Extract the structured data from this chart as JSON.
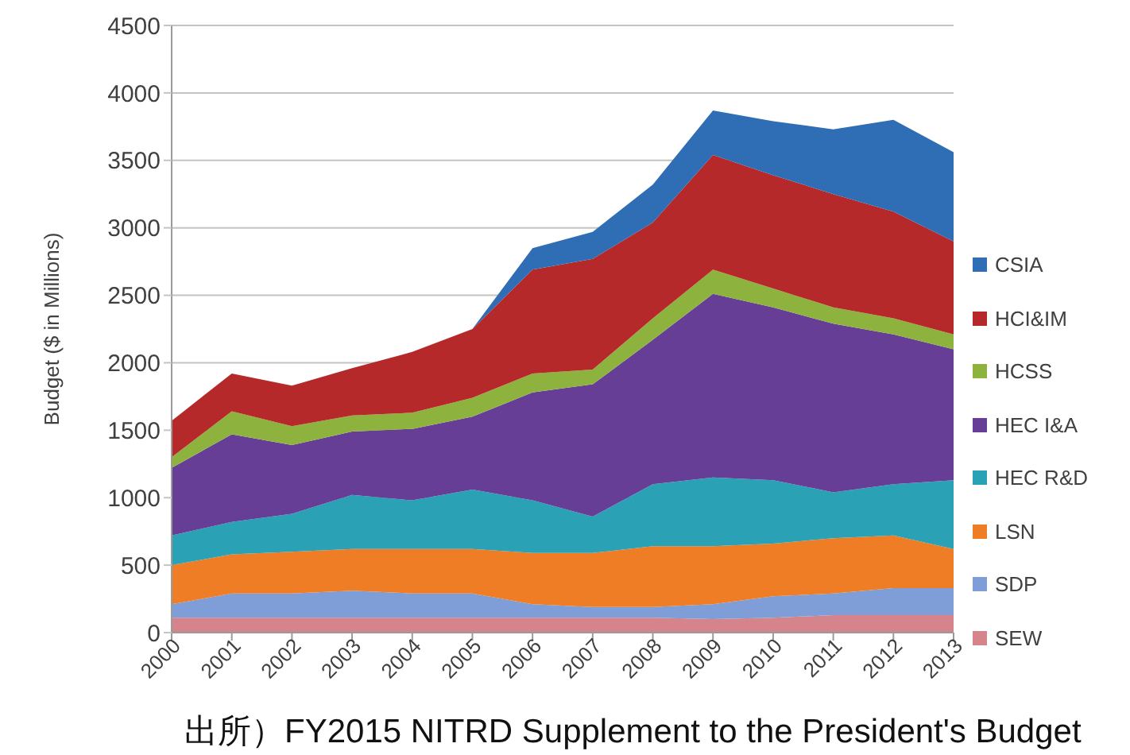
{
  "chart_data": {
    "type": "area",
    "stacked": true,
    "ylabel": "Budget ($ in Millions)",
    "categories": [
      "2000",
      "2001",
      "2002",
      "2003",
      "2004",
      "2005",
      "2006",
      "2007",
      "2008",
      "2009",
      "2010",
      "2011",
      "2012",
      "2013"
    ],
    "series": [
      {
        "name": "SEW",
        "color": "#d6848c",
        "values": [
          110,
          110,
          110,
          110,
          110,
          110,
          110,
          110,
          110,
          100,
          110,
          130,
          130,
          130
        ]
      },
      {
        "name": "SDP",
        "color": "#7f9dd6",
        "values": [
          100,
          180,
          180,
          200,
          180,
          180,
          100,
          80,
          80,
          110,
          160,
          160,
          200,
          200
        ]
      },
      {
        "name": "LSN",
        "color": "#ee7d26",
        "values": [
          290,
          290,
          310,
          310,
          330,
          330,
          380,
          400,
          450,
          430,
          390,
          410,
          390,
          290
        ]
      },
      {
        "name": "HEC R&D",
        "color": "#2ba1b6",
        "values": [
          220,
          240,
          280,
          400,
          360,
          440,
          390,
          270,
          460,
          510,
          470,
          340,
          380,
          510
        ]
      },
      {
        "name": "HEC I&A",
        "color": "#663e95",
        "values": [
          500,
          650,
          510,
          470,
          530,
          540,
          800,
          980,
          1070,
          1360,
          1280,
          1250,
          1110,
          970
        ]
      },
      {
        "name": "HCSS",
        "color": "#8db23e",
        "values": [
          80,
          170,
          140,
          120,
          120,
          140,
          140,
          110,
          160,
          180,
          140,
          120,
          120,
          110
        ]
      },
      {
        "name": "HCI&IM",
        "color": "#b6292b",
        "values": [
          270,
          280,
          300,
          350,
          450,
          510,
          770,
          820,
          710,
          850,
          840,
          840,
          790,
          690
        ]
      },
      {
        "name": "CSIA",
        "color": "#2f6db4",
        "values": [
          0,
          0,
          0,
          0,
          0,
          0,
          160,
          200,
          280,
          330,
          400,
          480,
          680,
          660
        ]
      }
    ],
    "ylim": [
      0,
      4500
    ],
    "yticks": [
      0,
      500,
      1000,
      1500,
      2000,
      2500,
      3000,
      3500,
      4000,
      4500
    ],
    "grid": "y",
    "legend": "right",
    "annotations": [
      "出所）FY2015 NITRD Supplement to the President's Budget"
    ]
  }
}
